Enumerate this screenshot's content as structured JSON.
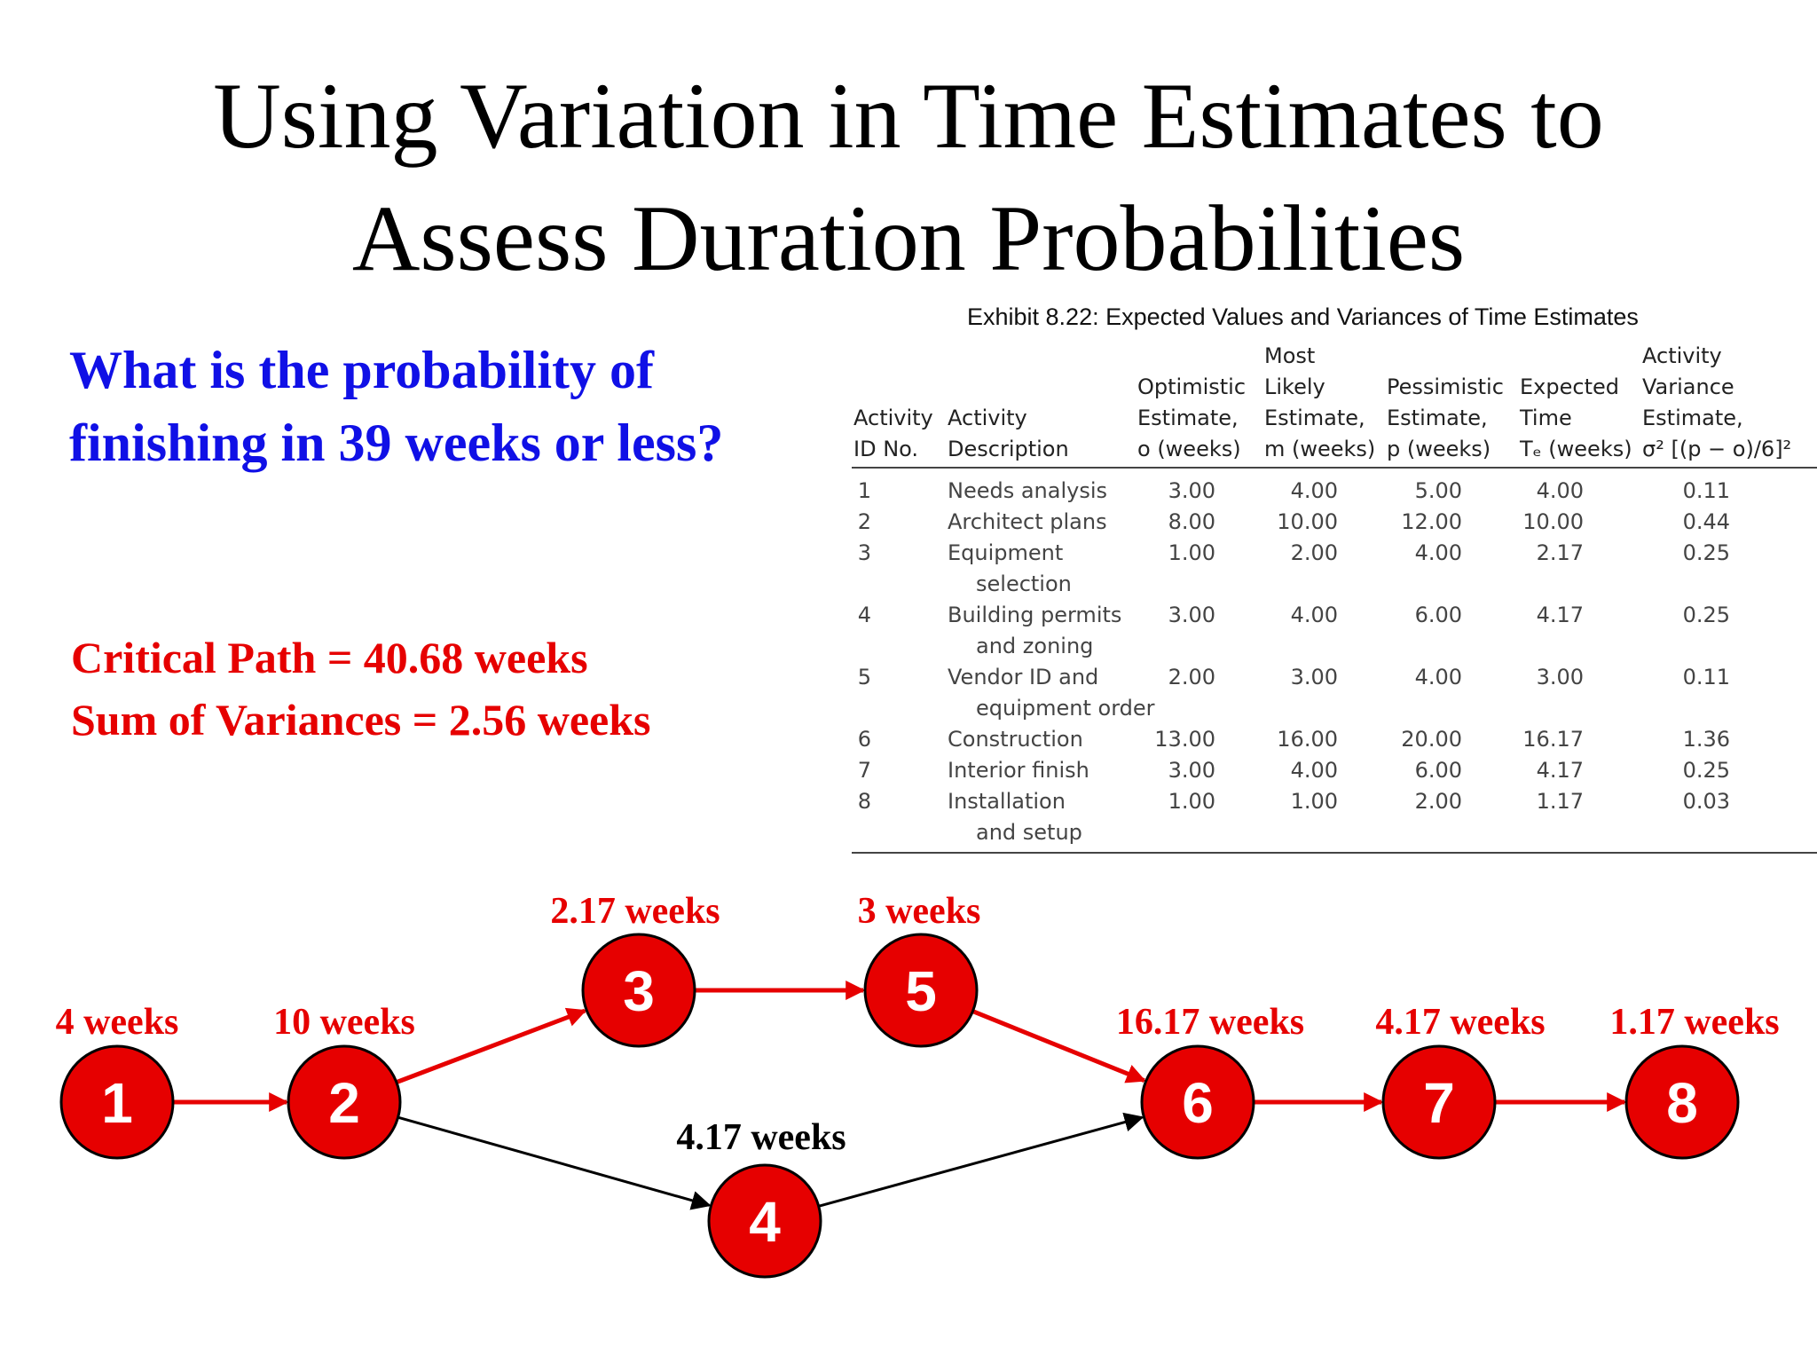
{
  "title": {
    "line1": "Using Variation in Time Estimates to",
    "line2": "Assess Duration Probabilities"
  },
  "question": {
    "line1": "What is the probability of",
    "line2": "finishing in 39 weeks or less?"
  },
  "stats": {
    "critical_path": "Critical Path = 40.68 weeks",
    "sum_variances": "Sum of Variances = 2.56 weeks"
  },
  "colors": {
    "question": "#1010e6",
    "accent": "#e60000",
    "node_fill": "#e60000",
    "critical_arrow": "#e60000",
    "other_arrow": "#000000"
  },
  "exhibit": {
    "caption": "Exhibit 8.22: Expected Values and Variances of Time Estimates",
    "headers": {
      "id": [
        "Activity",
        "ID No."
      ],
      "desc": [
        "Activity",
        "Description"
      ],
      "opt": [
        "Optimistic",
        "Estimate,",
        "o (weeks)"
      ],
      "most": [
        "Most",
        "Likely",
        "Estimate,",
        "m (weeks)"
      ],
      "pess": [
        "Pessimistic",
        "Estimate,",
        "p (weeks)"
      ],
      "exp": [
        "Expected",
        "Time",
        "Tₑ (weeks)"
      ],
      "var": [
        "Activity",
        "Variance",
        "Estimate,",
        "σ² [(p − o)/6]²"
      ]
    },
    "rows": [
      {
        "id": "1",
        "desc": [
          "Needs analysis"
        ],
        "o": "3.00",
        "m": "4.00",
        "p": "5.00",
        "te": "4.00",
        "var": "0.11"
      },
      {
        "id": "2",
        "desc": [
          "Architect plans"
        ],
        "o": "8.00",
        "m": "10.00",
        "p": "12.00",
        "te": "10.00",
        "var": "0.44"
      },
      {
        "id": "3",
        "desc": [
          "Equipment",
          "selection"
        ],
        "o": "1.00",
        "m": "2.00",
        "p": "4.00",
        "te": "2.17",
        "var": "0.25"
      },
      {
        "id": "4",
        "desc": [
          "Building permits",
          "and zoning"
        ],
        "o": "3.00",
        "m": "4.00",
        "p": "6.00",
        "te": "4.17",
        "var": "0.25"
      },
      {
        "id": "5",
        "desc": [
          "Vendor ID and",
          "equipment order"
        ],
        "o": "2.00",
        "m": "3.00",
        "p": "4.00",
        "te": "3.00",
        "var": "0.11"
      },
      {
        "id": "6",
        "desc": [
          "Construction"
        ],
        "o": "13.00",
        "m": "16.00",
        "p": "20.00",
        "te": "16.17",
        "var": "1.36"
      },
      {
        "id": "7",
        "desc": [
          "Interior finish"
        ],
        "o": "3.00",
        "m": "4.00",
        "p": "6.00",
        "te": "4.17",
        "var": "0.25"
      },
      {
        "id": "8",
        "desc": [
          "Installation",
          "and setup"
        ],
        "o": "1.00",
        "m": "1.00",
        "p": "2.00",
        "te": "1.17",
        "var": "0.03"
      }
    ]
  },
  "network": {
    "nodes": [
      {
        "id": "1",
        "duration": "4 weeks",
        "label_color": "#e60000"
      },
      {
        "id": "2",
        "duration": "10 weeks",
        "label_color": "#e60000"
      },
      {
        "id": "3",
        "duration": "2.17 weeks",
        "label_color": "#e60000"
      },
      {
        "id": "4",
        "duration": "4.17 weeks",
        "label_color": "#000000"
      },
      {
        "id": "5",
        "duration": "3 weeks",
        "label_color": "#e60000"
      },
      {
        "id": "6",
        "duration": "16.17 weeks",
        "label_color": "#e60000"
      },
      {
        "id": "7",
        "duration": "4.17 weeks",
        "label_color": "#e60000"
      },
      {
        "id": "8",
        "duration": "1.17 weeks",
        "label_color": "#e60000"
      }
    ],
    "edges": [
      {
        "from": "1",
        "to": "2",
        "critical": true
      },
      {
        "from": "2",
        "to": "3",
        "critical": true
      },
      {
        "from": "3",
        "to": "5",
        "critical": true
      },
      {
        "from": "5",
        "to": "6",
        "critical": true
      },
      {
        "from": "2",
        "to": "4",
        "critical": false
      },
      {
        "from": "4",
        "to": "6",
        "critical": false
      },
      {
        "from": "6",
        "to": "7",
        "critical": true
      },
      {
        "from": "7",
        "to": "8",
        "critical": true
      }
    ]
  }
}
